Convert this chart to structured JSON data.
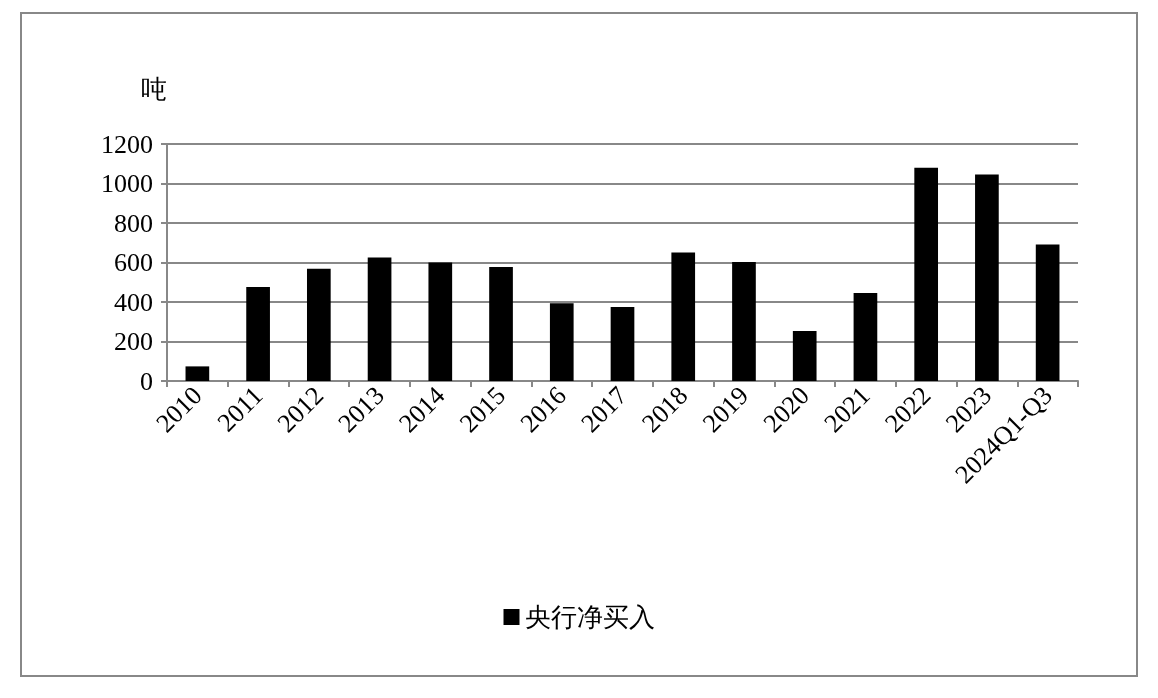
{
  "chart_data": {
    "type": "bar",
    "ylabel": "吨",
    "categories": [
      "2010",
      "2011",
      "2012",
      "2013",
      "2014",
      "2015",
      "2016",
      "2017",
      "2018",
      "2019",
      "2020",
      "2021",
      "2022",
      "2023",
      "2024Q1-Q3"
    ],
    "series": [
      {
        "name": "央行净买入",
        "color": "#000000",
        "values": [
          74,
          476,
          568,
          625,
          600,
          577,
          394,
          375,
          651,
          603,
          253,
          445,
          1080,
          1045,
          691
        ]
      }
    ],
    "ylim": [
      0,
      1200
    ],
    "yticks": [
      0,
      200,
      400,
      600,
      800,
      1000,
      1200
    ],
    "grid": "y",
    "legend": "bottom"
  }
}
